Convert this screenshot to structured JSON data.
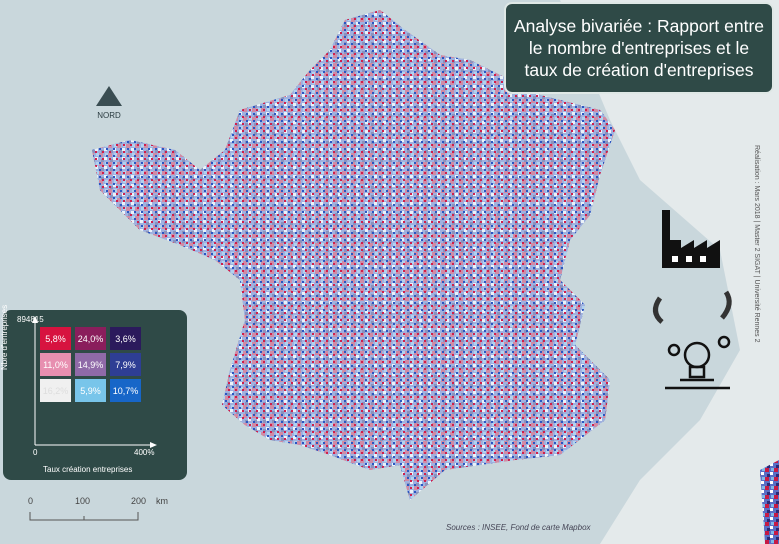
{
  "title": "Analyse bivariée : Rapport entre le nombre d'entreprises et le taux de création d'entreprises",
  "north_label": "NORD",
  "legend": {
    "y_max": "894815",
    "y_label": "Nbre d'entreprises",
    "x_min": "0",
    "x_max": "400%",
    "x_label": "Taux création entreprises",
    "cells": [
      {
        "label": "5,8%",
        "color": "#d7133f"
      },
      {
        "label": "24,0%",
        "color": "#8a1e5c"
      },
      {
        "label": "3,6%",
        "color": "#2b1a5c"
      },
      {
        "label": "11,0%",
        "color": "#e78fb0"
      },
      {
        "label": "14,9%",
        "color": "#8f6aa8"
      },
      {
        "label": "7,9%",
        "color": "#2e3e94"
      },
      {
        "label": "16,2%",
        "color": "#f0f0f0"
      },
      {
        "label": "5,9%",
        "color": "#78c5ea"
      },
      {
        "label": "10,7%",
        "color": "#1766c8"
      }
    ]
  },
  "scale": {
    "labels": [
      "0",
      "100",
      "200"
    ],
    "unit": "km"
  },
  "credit": "Réalisation : Mars 2018 | Master 2 SIGAT | Université Rennes 2",
  "sources": "Sources : INSEE, Fond de carte Mapbox",
  "colors": {
    "panel": "#2f4a47",
    "sea": "#c9d7dc"
  }
}
